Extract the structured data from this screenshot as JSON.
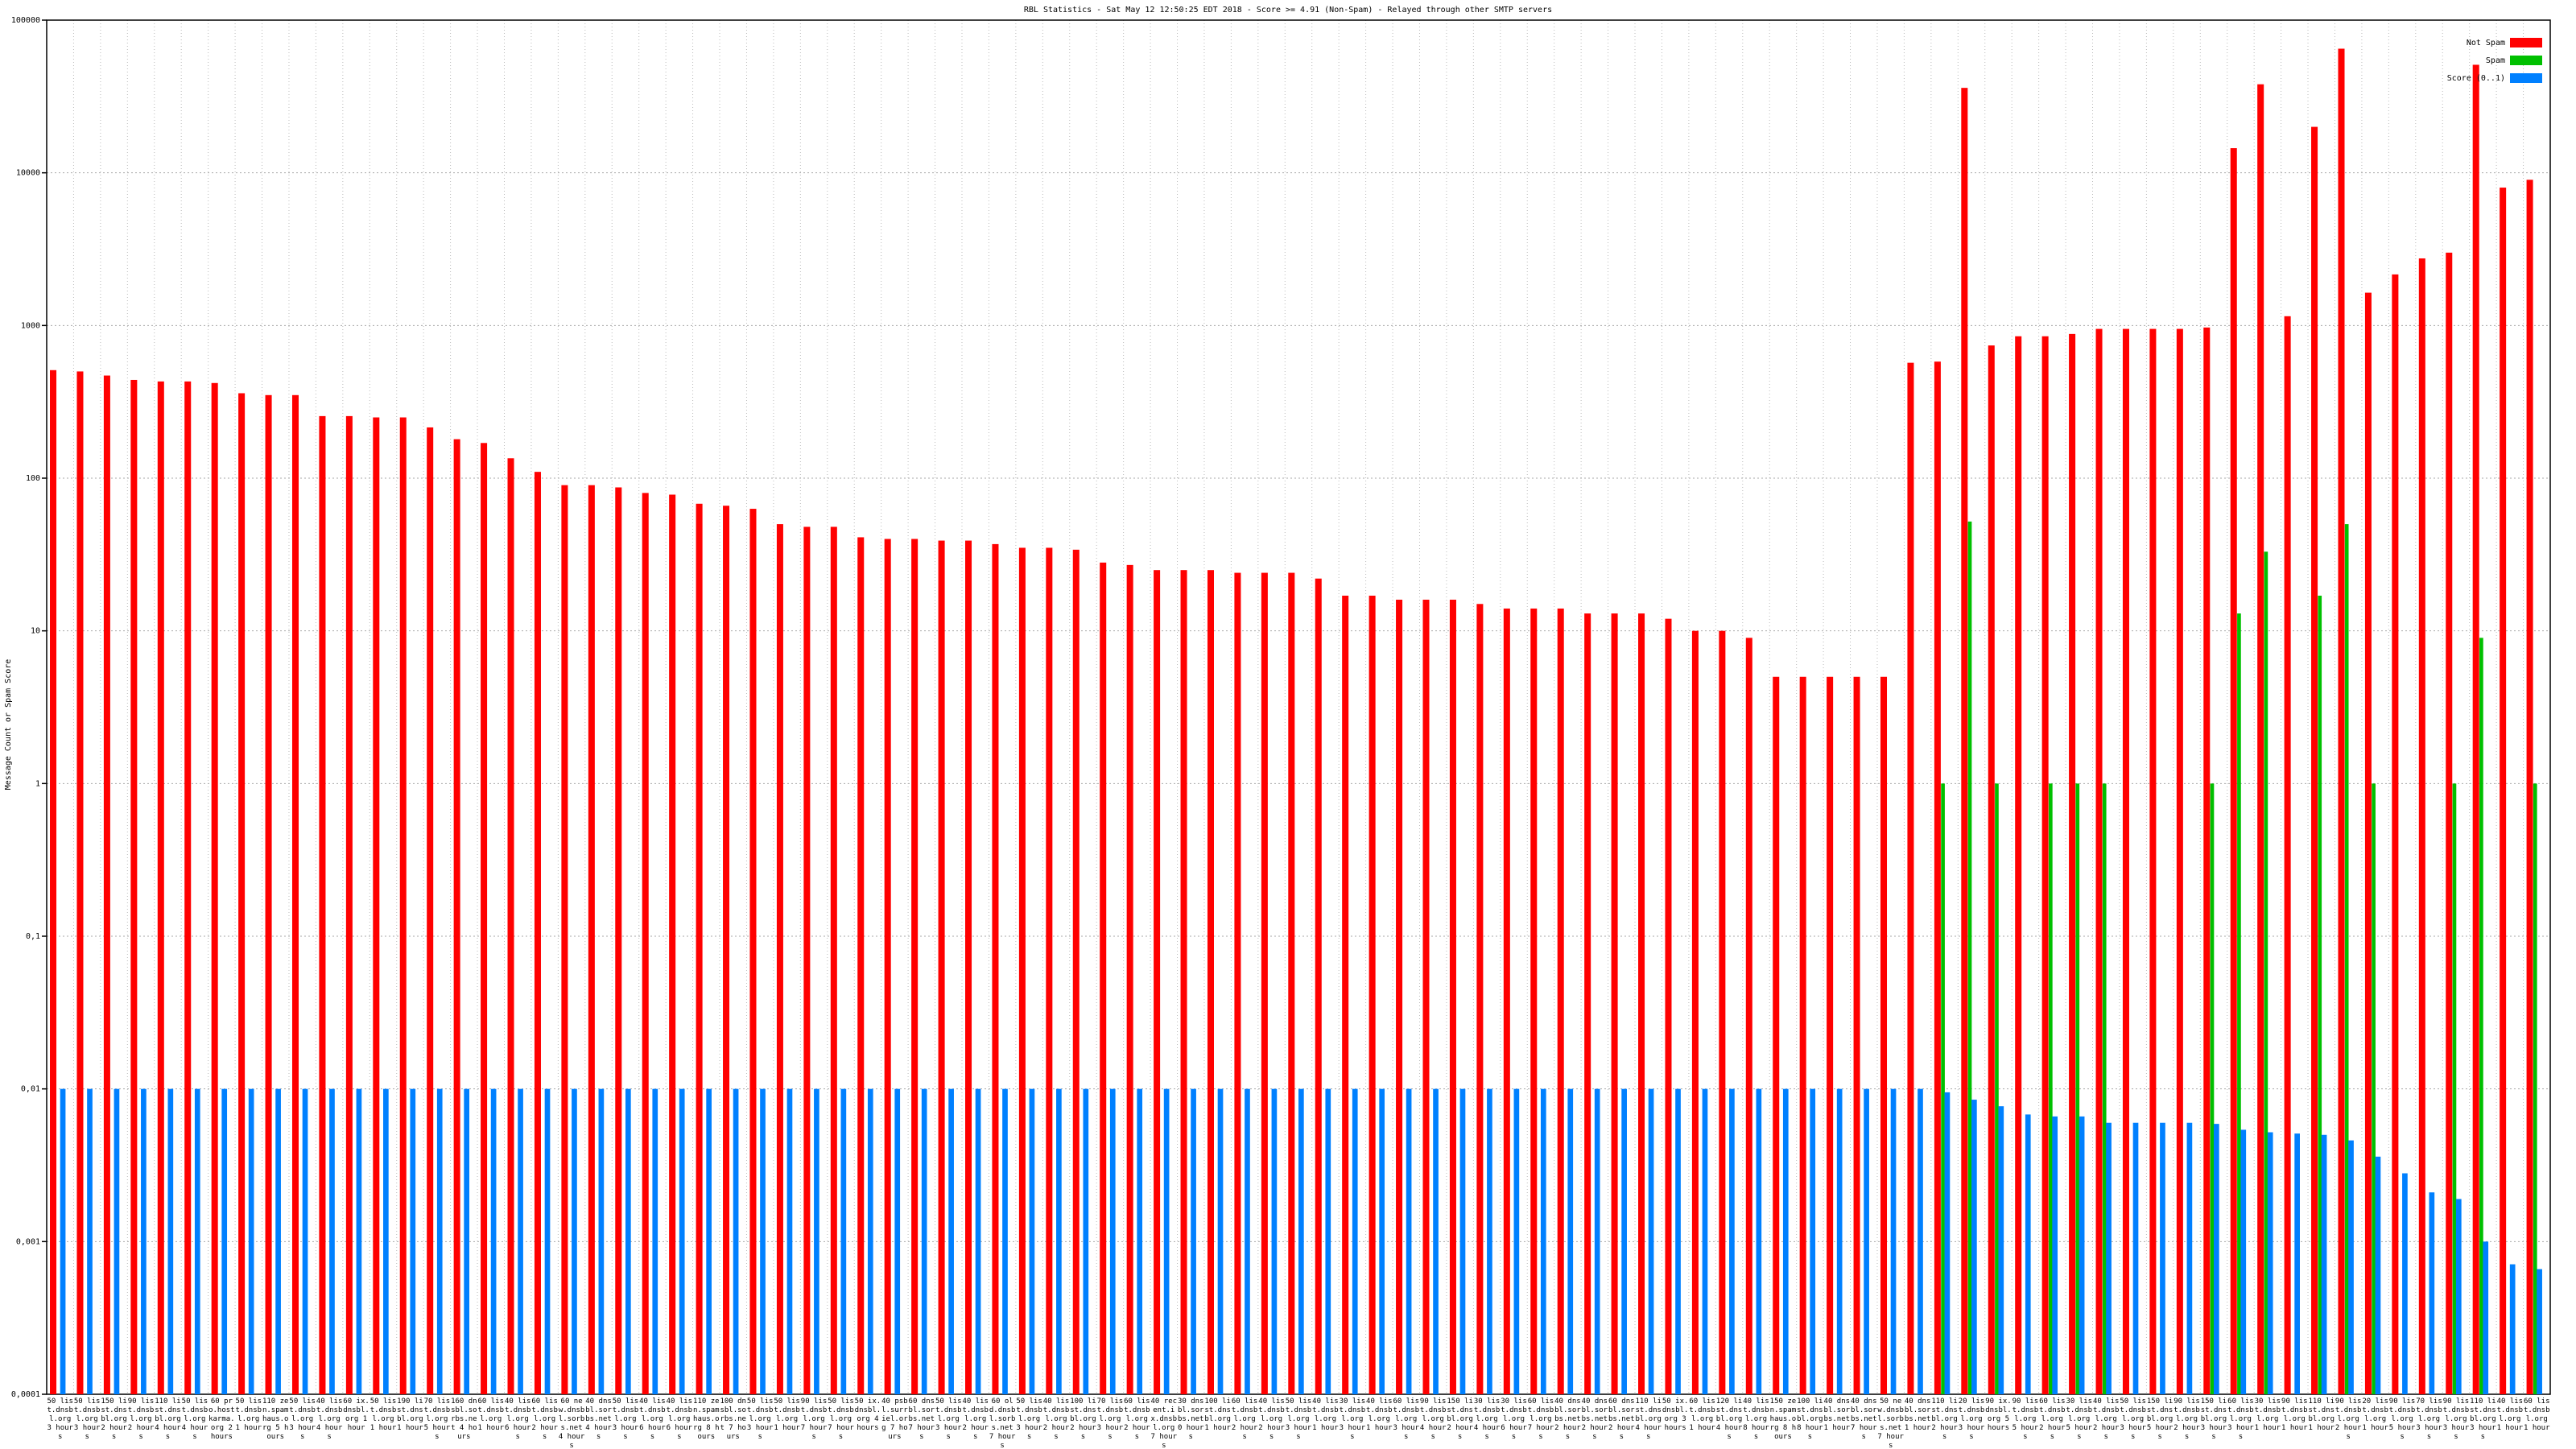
{
  "chart_data": {
    "type": "bar",
    "title": "RBL Statistics - Sat May 12 12:50:25 EDT 2018 - Score >= 4.91 (Non-Spam) - Relayed through other SMTP servers",
    "y_label": "Message Count or Spam Score",
    "log_scale": true,
    "grid": true,
    "legend": "top-right",
    "ylim": [
      0.0001,
      100000
    ],
    "yticks": [
      {
        "value": 0.0001,
        "label": "0,0001"
      },
      {
        "value": 0.001,
        "label": "0,001"
      },
      {
        "value": 0.01,
        "label": "0,01"
      },
      {
        "value": 0.1,
        "label": "0,1"
      },
      1,
      10,
      100,
      1000,
      10000,
      100000
    ],
    "categories": [
      "50 list.dnsbl.org 3 hours",
      "50 list.dnsbl.org 3 hours",
      "150 list.dnsbl.org 2 hours",
      "90 list.dnsbl.org 2 hours",
      "110 list.dnsbl.org 4 hours",
      "50 list.dnsbl.org 4 hours",
      "60 pro.hostkarma.org 2 hours",
      "50 list.dnsbl.org 1 hour",
      "110 zen.spamhaus.org 5 hours",
      "50 list.dnsbl.org 3 hours",
      "40 list.dnsbl.org 4 hours",
      "60 ix.dnsbl.org 1 hour",
      "50 list.dnsbl.org 1 hour",
      "190 list.dnsbl.org 1 hour",
      "70 list.dnsbl.org 5 hours",
      "160 dnsbl.sorbs.net 4 hours",
      "60 list.dnsbl.org 1 hour",
      "40 list.dnsbl.org 6 hours",
      "60 list.dnsbl.org 2 hours",
      "60 new.dnsbl.sorbs.net 4 hours",
      "40 dnsbl.sorbs.net 4 hours",
      "50 list.dnsbl.org 3 hours",
      "40 list.dnsbl.org 6 hours",
      "40 list.dnsbl.org 6 hours",
      "110 zen.spamhaus.org 8 hours",
      "100 dnsbl.sorbs.net 7 hours",
      "50 list.dnsbl.org 3 hours",
      "50 list.dnsbl.org 1 hour",
      "90 list.dnsbl.org 7 hours",
      "50 list.dnsbl.org 7 hours",
      "50 ix.dnsbl.org 4 hours",
      "40 psbl.surriel.org 7 hours",
      "60 dnsbl.sorbs.net 7 hours",
      "50 list.dnsbl.org 3 hours",
      "40 list.dnsbl.org 2 hours",
      "60 old.dnsbl.sorbs.net 7 hours",
      "50 list.dnsbl.org 3 hours",
      "40 list.dnsbl.org 2 hours",
      "100 list.dnsbl.org 2 hours",
      "70 list.dnsbl.org 3 hours",
      "60 list.dnsbl.org 2 hours",
      "40 recent.ix.dnsbl.org 7 hours",
      "30 dnsbl.sorbs.net 0 hours",
      "100 list.dnsbl.org 1 hour",
      "60 list.dnsbl.org 2 hours",
      "40 list.dnsbl.org 2 hours",
      "50 list.dnsbl.org 3 hours",
      "40 list.dnsbl.org 1 hour",
      "30 list.dnsbl.org 3 hours",
      "40 list.dnsbl.org 1 hour",
      "60 list.dnsbl.org 3 hours",
      "90 list.dnsbl.org 4 hours",
      "150 list.dnsbl.org 2 hours",
      "30 list.dnsbl.org 4 hours",
      "30 list.dnsbl.org 6 hours",
      "60 list.dnsbl.org 7 hours",
      "40 dnsbl.sorbs.net 2 hours",
      "40 dnsbl.sorbs.net 2 hours",
      "60 dnsbl.sorbs.net 2 hours",
      "110 list.dnsbl.org 4 hours",
      "50 ix.dnsbl.org 3 hours",
      "60 list.dnsbl.org 1 hour",
      "120 list.dnsbl.org 4 hours",
      "40 list.dnsbl.org 8 hours",
      "150 zen.spamhaus.org 8 hours",
      "100 list.dnsbl.org 8 hours",
      "40 dnsbl.sorbs.net 1 hour",
      "40 dnsbl.sorbs.net 7 hours",
      "50 new.dnsbl.sorbs.net 7 hours",
      "40 dnsbl.sorbs.net 1 hour",
      "110 list.dnsbl.org 2 hours",
      "20 list.dnsbl.org 3 hours",
      "90 ix.dnsbl.org 5 hours",
      "90 list.dnsbl.org 5 hours",
      "60 list.dnsbl.org 2 hours",
      "30 list.dnsbl.org 5 hours",
      "40 list.dnsbl.org 2 hours",
      "50 list.dnsbl.org 3 hours",
      "150 list.dnsbl.org 5 hours",
      "90 list.dnsbl.org 2 hours",
      "150 list.dnsbl.org 3 hours",
      "60 list.dnsbl.org 3 hours",
      "30 list.dnsbl.org 1 hour",
      "90 list.dnsbl.org 1 hour",
      "110 list.dnsbl.org 1 hour",
      "90 list.dnsbl.org 2 hours",
      "20 list.dnsbl.org 1 hour",
      "90 list.dnsbl.org 5 hours",
      "70 list.dnsbl.org 3 hours",
      "90 list.dnsbl.org 3 hours",
      "110 list.dnsbl.org 3 hours",
      "40 list.dnsbl.org 1 hour",
      "60 list.dnsbl.org 1 hour"
    ],
    "series": [
      {
        "name": "Not Spam",
        "color": "#ff0000",
        "values": [
          510,
          500,
          470,
          440,
          430,
          430,
          420,
          360,
          350,
          350,
          255,
          255,
          250,
          250,
          215,
          180,
          170,
          135,
          110,
          90,
          90,
          87,
          80,
          78,
          68,
          66,
          63,
          50,
          48,
          48,
          41,
          40,
          40,
          39,
          39,
          37,
          35,
          35,
          34,
          28,
          27,
          25,
          25,
          25,
          24,
          24,
          24,
          22,
          17,
          17,
          16,
          16,
          16,
          15,
          14,
          14,
          14,
          13,
          13,
          13,
          12,
          10,
          10,
          9,
          5,
          5,
          5,
          5,
          5,
          570,
          580,
          36000,
          740,
          850,
          850,
          880,
          950,
          950,
          950,
          950,
          970,
          14500,
          38000,
          1150,
          20000,
          65000,
          1640,
          2160,
          2750,
          3000,
          51000,
          8000,
          9000
        ]
      },
      {
        "name": "Spam",
        "color": "#00c000",
        "values": [
          null,
          null,
          null,
          null,
          null,
          null,
          null,
          null,
          null,
          null,
          null,
          null,
          null,
          null,
          null,
          null,
          null,
          null,
          null,
          null,
          null,
          null,
          null,
          null,
          null,
          null,
          null,
          null,
          null,
          null,
          null,
          null,
          null,
          null,
          null,
          null,
          null,
          null,
          null,
          null,
          null,
          null,
          null,
          null,
          null,
          null,
          null,
          null,
          null,
          null,
          null,
          null,
          null,
          null,
          null,
          null,
          null,
          null,
          null,
          null,
          null,
          null,
          null,
          null,
          null,
          null,
          null,
          null,
          null,
          null,
          1,
          52,
          1,
          null,
          1,
          1,
          1,
          null,
          null,
          null,
          1,
          13,
          33,
          null,
          17,
          50,
          1,
          null,
          null,
          1,
          9,
          null,
          1
        ]
      },
      {
        "name": "Score (0..1)",
        "color": "#0080ff",
        "values": [
          0.01,
          0.01,
          0.01,
          0.01,
          0.01,
          0.01,
          0.01,
          0.01,
          0.01,
          0.01,
          0.01,
          0.01,
          0.01,
          0.01,
          0.01,
          0.01,
          0.01,
          0.01,
          0.01,
          0.01,
          0.01,
          0.01,
          0.01,
          0.01,
          0.01,
          0.01,
          0.01,
          0.01,
          0.01,
          0.01,
          0.01,
          0.01,
          0.01,
          0.01,
          0.01,
          0.01,
          0.01,
          0.01,
          0.01,
          0.01,
          0.01,
          0.01,
          0.01,
          0.01,
          0.01,
          0.01,
          0.01,
          0.01,
          0.01,
          0.01,
          0.01,
          0.01,
          0.01,
          0.01,
          0.01,
          0.01,
          0.01,
          0.01,
          0.01,
          0.01,
          0.01,
          0.01,
          0.01,
          0.01,
          0.01,
          0.01,
          0.01,
          0.01,
          0.01,
          0.01,
          0.0095,
          0.0085,
          0.0077,
          0.0068,
          0.0066,
          0.0066,
          0.006,
          0.006,
          0.006,
          0.006,
          0.0059,
          0.0054,
          0.0052,
          0.0051,
          0.005,
          0.0046,
          0.0036,
          0.0028,
          0.0021,
          0.0019,
          0.001,
          0.00071,
          0.00066
        ]
      }
    ]
  }
}
